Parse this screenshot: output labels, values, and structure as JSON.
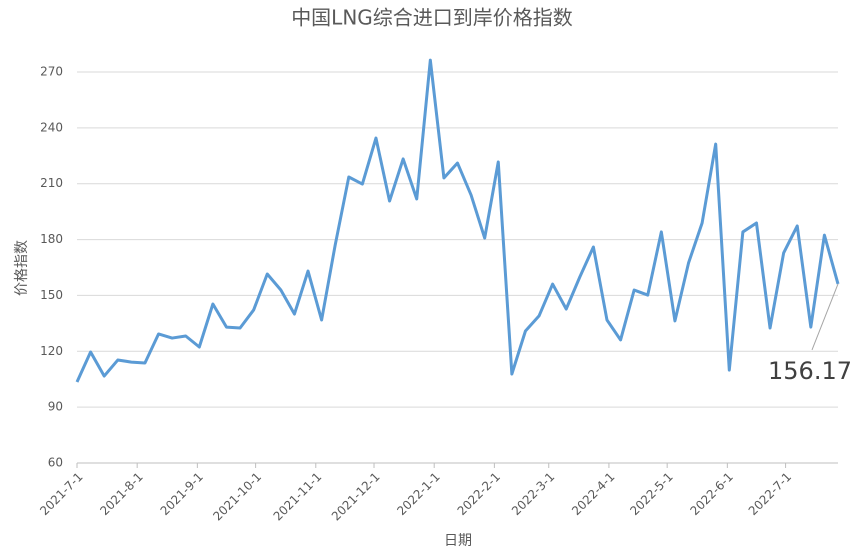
{
  "chart_data": {
    "type": "line",
    "title": "中国LNG综合进口到岸价格指数",
    "x_label": "日期",
    "y_label": "价格指数",
    "x": [
      0,
      7,
      14,
      21,
      28,
      35,
      42,
      49,
      56,
      63,
      70,
      77,
      84,
      91,
      98,
      105,
      112,
      119,
      126,
      133,
      140,
      147,
      154,
      161,
      168,
      175,
      182,
      189,
      196,
      203,
      210,
      217,
      224,
      231,
      238,
      245,
      252,
      259,
      266,
      273,
      280,
      287,
      294,
      301,
      308,
      315,
      322,
      329,
      336,
      343,
      350,
      357,
      364,
      371,
      378,
      385,
      392
    ],
    "values": [
      103.5,
      119.6,
      106.7,
      115.3,
      114.2,
      113.7,
      129.3,
      127.1,
      128.2,
      122.3,
      145.4,
      133.0,
      132.5,
      142.2,
      161.5,
      152.9,
      140.0,
      163.1,
      136.8,
      177.1,
      213.6,
      209.8,
      234.5,
      200.7,
      223.3,
      201.8,
      276.4,
      213.1,
      221.1,
      203.9,
      180.8,
      221.7,
      107.8,
      130.9,
      139.0,
      156.1,
      142.7,
      159.9,
      176.0,
      136.8,
      126.1,
      152.9,
      150.2,
      184.1,
      136.3,
      167.4,
      188.9,
      231.3,
      109.9,
      184.1,
      188.9,
      132.5,
      172.8,
      187.3,
      133.0,
      182.4,
      156.17
    ],
    "color": "#5b9bd5",
    "xlim": [
      0,
      392
    ],
    "xticks": [
      {
        "value": 0,
        "label": "2021-7-1"
      },
      {
        "value": 31,
        "label": "2021-8-1"
      },
      {
        "value": 62,
        "label": "2021-9-1"
      },
      {
        "value": 92,
        "label": "2021-10-1"
      },
      {
        "value": 123,
        "label": "2021-11-1"
      },
      {
        "value": 153,
        "label": "2021-12-1"
      },
      {
        "value": 184,
        "label": "2022-1-1"
      },
      {
        "value": 215,
        "label": "2022-2-1"
      },
      {
        "value": 243,
        "label": "2022-3-1"
      },
      {
        "value": 274,
        "label": "2022-4-1"
      },
      {
        "value": 304,
        "label": "2022-5-1"
      },
      {
        "value": 335,
        "label": "2022-6-1"
      },
      {
        "value": 365,
        "label": "2022-7-1"
      }
    ],
    "ylim": [
      60,
      270
    ],
    "yticks": [
      60,
      90,
      120,
      150,
      180,
      210,
      240,
      270
    ],
    "grid": true
  }
}
